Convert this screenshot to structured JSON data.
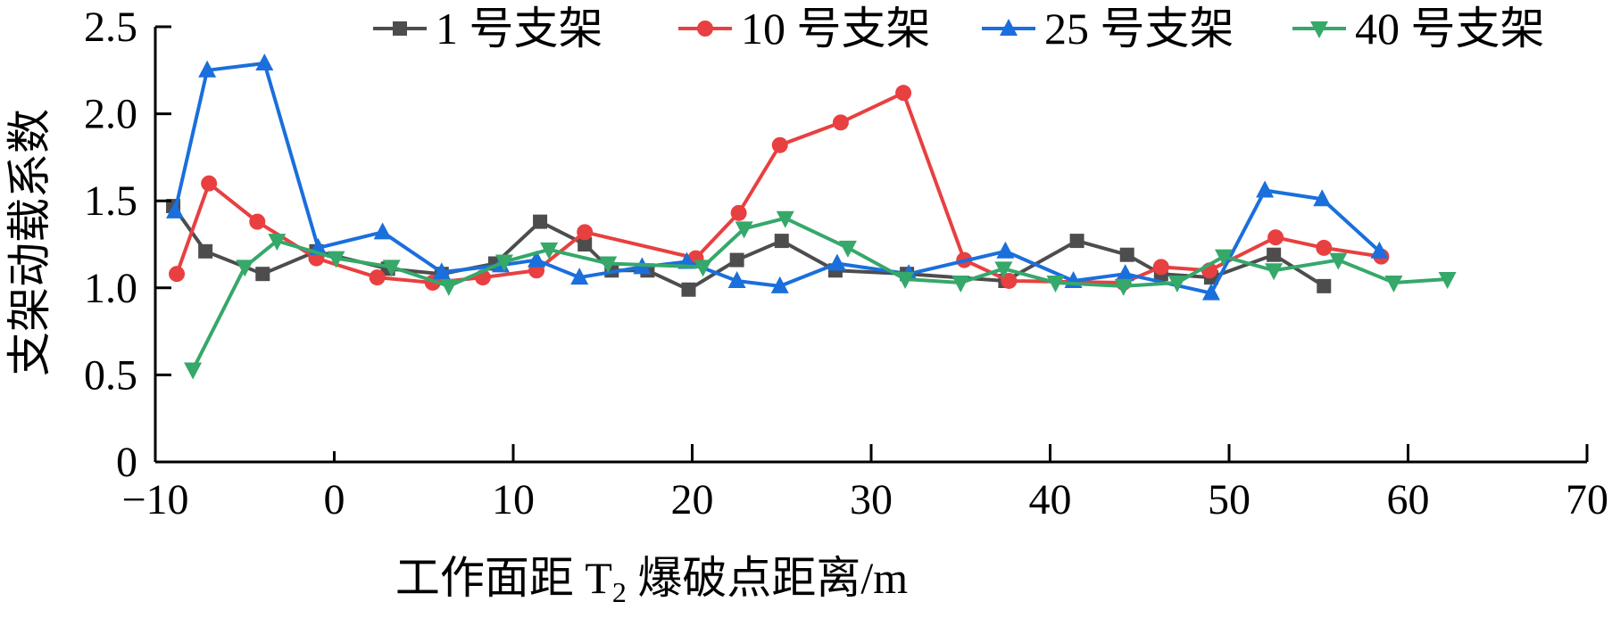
{
  "chart_data": {
    "type": "line",
    "title": "",
    "xlabel": "工作面距 T2 爆破点距离/m",
    "xlabel_main": "工作面距 T",
    "xlabel_sub": "2",
    "xlabel_rest": " 爆破点距离/m",
    "ylabel": "支架动载系数",
    "xlim": [
      -10,
      70
    ],
    "ylim": [
      0,
      2.5
    ],
    "x_ticks": [
      -10,
      0,
      10,
      20,
      30,
      40,
      50,
      60,
      70
    ],
    "x_tick_labels": [
      "−10",
      "0",
      "10",
      "20",
      "30",
      "40",
      "50",
      "60",
      "70"
    ],
    "y_ticks": [
      0,
      0.5,
      1.0,
      1.5,
      2.0,
      2.5
    ],
    "y_tick_labels": [
      "0",
      "0.5",
      "1.0",
      "1.5",
      "2.0",
      "2.5"
    ],
    "grid": false,
    "legend_position": "top",
    "series": [
      {
        "name": "1 号支架",
        "color": "#4d4d4d",
        "marker": "square",
        "x": [
          -9.0,
          -7.2,
          -4.0,
          -1.0,
          3.0,
          6.0,
          9.0,
          11.5,
          14.0,
          15.5,
          17.5,
          19.8,
          22.5,
          25.0,
          28.0,
          32.0,
          37.5,
          41.5,
          44.3,
          46.2,
          49.0,
          52.5,
          55.3
        ],
        "y": [
          1.47,
          1.21,
          1.08,
          1.21,
          1.11,
          1.08,
          1.14,
          1.38,
          1.25,
          1.1,
          1.1,
          0.99,
          1.16,
          1.27,
          1.1,
          1.08,
          1.04,
          1.27,
          1.19,
          1.08,
          1.06,
          1.19,
          1.01
        ]
      },
      {
        "name": "10 号支架",
        "color": "#e84040",
        "marker": "circle",
        "x": [
          -8.8,
          -7.0,
          -4.3,
          -1.0,
          2.4,
          5.5,
          8.3,
          11.3,
          14.0,
          20.2,
          22.6,
          24.9,
          28.3,
          31.8,
          35.2,
          37.7,
          44.1,
          46.2,
          48.9,
          52.6,
          55.3,
          58.5
        ],
        "y": [
          1.08,
          1.6,
          1.38,
          1.17,
          1.06,
          1.03,
          1.06,
          1.1,
          1.32,
          1.17,
          1.43,
          1.82,
          1.95,
          2.12,
          1.16,
          1.04,
          1.03,
          1.12,
          1.1,
          1.29,
          1.23,
          1.18
        ]
      },
      {
        "name": "25 号支架",
        "color": "#1a6fdc",
        "marker": "triangle-up",
        "x": [
          -8.9,
          -7.1,
          -3.9,
          -0.9,
          2.7,
          6.0,
          9.3,
          11.3,
          13.7,
          17.2,
          19.7,
          22.5,
          24.9,
          28.1,
          32.1,
          37.5,
          41.3,
          44.2,
          49.0,
          52.0,
          55.2,
          58.4
        ],
        "y": [
          1.44,
          2.25,
          2.29,
          1.23,
          1.32,
          1.09,
          1.13,
          1.16,
          1.06,
          1.12,
          1.15,
          1.04,
          1.01,
          1.14,
          1.08,
          1.21,
          1.04,
          1.08,
          0.97,
          1.56,
          1.51,
          1.21
        ]
      },
      {
        "name": "40 号支架",
        "color": "#35a86a",
        "marker": "triangle-down",
        "x": [
          -7.9,
          -5.0,
          -3.2,
          0.1,
          3.2,
          6.4,
          9.5,
          12.0,
          15.3,
          20.6,
          22.9,
          25.2,
          28.7,
          31.9,
          35.0,
          37.4,
          40.3,
          44.1,
          47.1,
          49.7,
          52.5,
          56.1,
          59.2,
          62.2
        ],
        "y": [
          0.53,
          1.12,
          1.27,
          1.17,
          1.12,
          1.01,
          1.15,
          1.22,
          1.14,
          1.12,
          1.34,
          1.4,
          1.23,
          1.05,
          1.03,
          1.11,
          1.03,
          1.01,
          1.03,
          1.18,
          1.1,
          1.16,
          1.03,
          1.05
        ]
      }
    ]
  }
}
